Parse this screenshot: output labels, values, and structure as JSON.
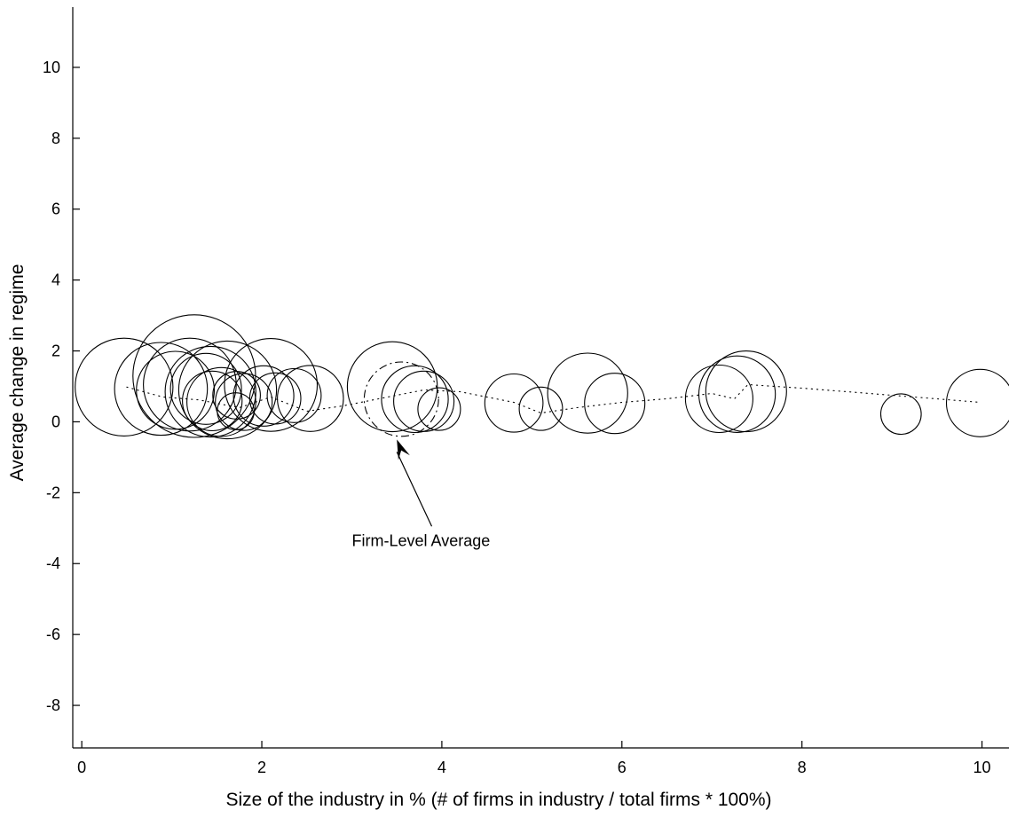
{
  "chart_data": {
    "type": "scatter",
    "subtype": "bubble",
    "title": "",
    "xlabel": "Size of the industry in % (# of firms in industry / total firms * 100%)",
    "ylabel": "Average change in regime",
    "xlim": [
      -0.1,
      10.3
    ],
    "ylim": [
      -9.2,
      11.7
    ],
    "xticks": [
      0,
      2,
      4,
      6,
      8,
      10
    ],
    "yticks": [
      -8,
      -6,
      -4,
      -2,
      0,
      2,
      4,
      6,
      8,
      10
    ],
    "grid": false,
    "legend": "none",
    "bubbles": [
      {
        "x": 0.47,
        "y": 0.98,
        "size": 1.38
      },
      {
        "x": 0.88,
        "y": 0.93,
        "size": 1.31
      },
      {
        "x": 1.04,
        "y": 0.89,
        "size": 1.1
      },
      {
        "x": 1.25,
        "y": 1.29,
        "size": 1.73
      },
      {
        "x": 1.2,
        "y": 1.05,
        "size": 1.31
      },
      {
        "x": 1.43,
        "y": 0.85,
        "size": 1.28
      },
      {
        "x": 1.38,
        "y": 0.93,
        "size": 1.0
      },
      {
        "x": 1.62,
        "y": 0.9,
        "size": 1.38
      },
      {
        "x": 1.45,
        "y": 0.59,
        "size": 0.84
      },
      {
        "x": 1.55,
        "y": 0.56,
        "size": 0.97
      },
      {
        "x": 1.71,
        "y": 0.3,
        "size": 0.52
      },
      {
        "x": 1.72,
        "y": 0.75,
        "size": 0.67
      },
      {
        "x": 1.8,
        "y": 0.56,
        "size": 0.8
      },
      {
        "x": 2.1,
        "y": 1.04,
        "size": 1.31
      },
      {
        "x": 2.02,
        "y": 0.73,
        "size": 0.85
      },
      {
        "x": 2.15,
        "y": 0.66,
        "size": 0.72
      },
      {
        "x": 2.36,
        "y": 0.74,
        "size": 0.76
      },
      {
        "x": 2.54,
        "y": 0.66,
        "size": 0.93
      },
      {
        "x": 3.45,
        "y": 0.99,
        "size": 1.27
      },
      {
        "x": 3.7,
        "y": 0.64,
        "size": 0.94
      },
      {
        "x": 3.8,
        "y": 0.58,
        "size": 0.85
      },
      {
        "x": 3.97,
        "y": 0.36,
        "size": 0.6
      },
      {
        "x": 4.8,
        "y": 0.53,
        "size": 0.82
      },
      {
        "x": 5.1,
        "y": 0.37,
        "size": 0.61
      },
      {
        "x": 5.62,
        "y": 0.81,
        "size": 1.13
      },
      {
        "x": 5.92,
        "y": 0.52,
        "size": 0.85
      },
      {
        "x": 7.08,
        "y": 0.65,
        "size": 0.95
      },
      {
        "x": 7.28,
        "y": 0.78,
        "size": 1.08
      },
      {
        "x": 7.38,
        "y": 0.86,
        "size": 1.14
      },
      {
        "x": 9.1,
        "y": 0.22,
        "size": 0.57
      },
      {
        "x": 9.98,
        "y": 0.53,
        "size": 0.95
      }
    ],
    "average_bubble": {
      "x": 3.55,
      "y": 0.64,
      "size": 1.05,
      "style": "dashed"
    },
    "trend_line": {
      "style": "dotted",
      "x": [
        0.5,
        0.9,
        1.3,
        1.75,
        2.1,
        2.5,
        2.9,
        3.4,
        3.8,
        4.2,
        4.8,
        5.1,
        5.5,
        6.0,
        6.5,
        7.0,
        7.25,
        7.4,
        8.0,
        9.0,
        9.98
      ],
      "y": [
        0.98,
        0.7,
        0.62,
        0.4,
        0.7,
        0.3,
        0.45,
        0.7,
        0.9,
        0.85,
        0.55,
        0.25,
        0.4,
        0.55,
        0.65,
        0.8,
        0.65,
        1.05,
        0.95,
        0.75,
        0.55
      ]
    },
    "annotations": [
      {
        "text": "Firm-Level Average",
        "x": 3.0,
        "y": -3.5,
        "arrow_to": {
          "x": 3.5,
          "y": -0.5
        }
      }
    ]
  }
}
